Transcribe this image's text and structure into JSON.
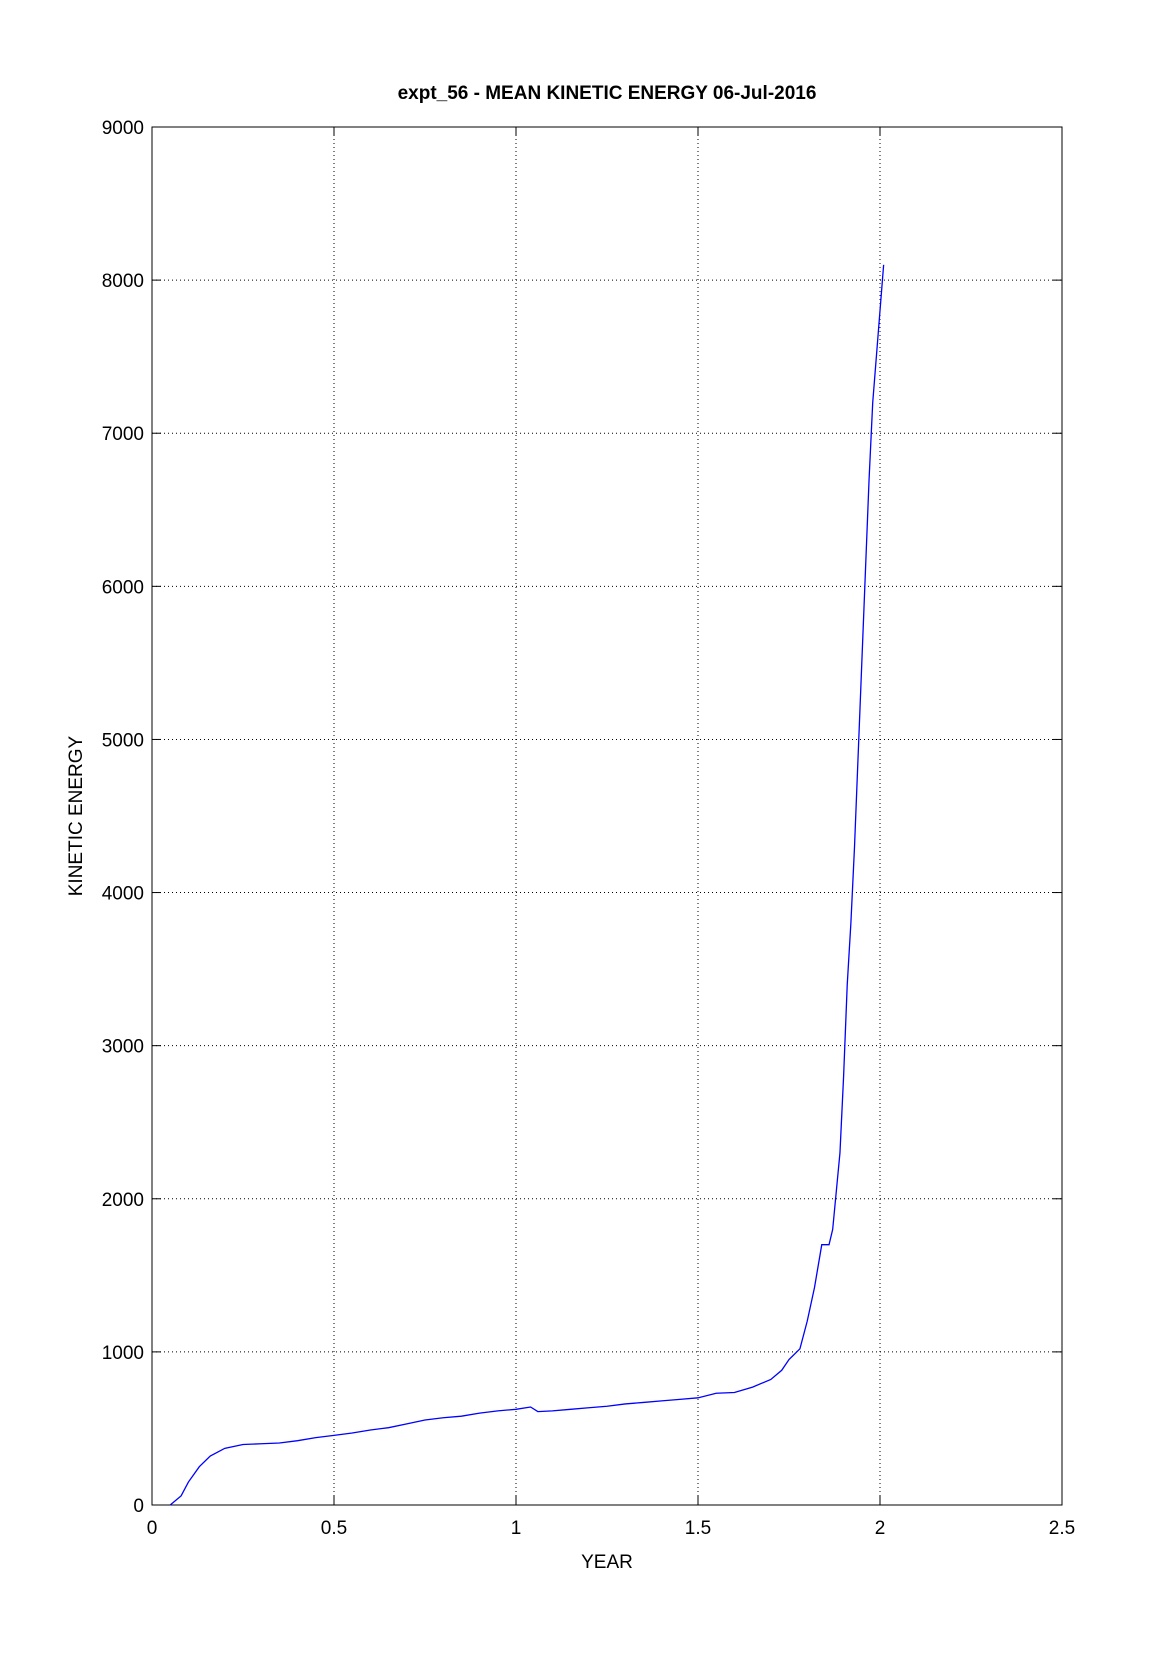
{
  "chart_data": {
    "type": "line",
    "title": "expt_56 - MEAN KINETIC ENERGY 06-Jul-2016",
    "x_label": "YEAR",
    "y_label": "KINETIC ENERGY",
    "xlim": [
      0,
      2.5
    ],
    "xticks": [
      0,
      0.5,
      1,
      1.5,
      2,
      2.5
    ],
    "ylim": [
      0,
      9000
    ],
    "yticks": [
      0,
      1000,
      2000,
      3000,
      4000,
      5000,
      6000,
      7000,
      8000,
      9000
    ],
    "grid": true,
    "series": [
      {
        "color": "#0000ff",
        "x": [
          0.05,
          0.08,
          0.1,
          0.13,
          0.16,
          0.2,
          0.25,
          0.3,
          0.35,
          0.4,
          0.45,
          0.5,
          0.55,
          0.6,
          0.65,
          0.7,
          0.75,
          0.8,
          0.85,
          0.9,
          0.95,
          1.0,
          1.04,
          1.06,
          1.1,
          1.15,
          1.2,
          1.25,
          1.3,
          1.35,
          1.4,
          1.45,
          1.5,
          1.55,
          1.6,
          1.65,
          1.7,
          1.73,
          1.75,
          1.78,
          1.8,
          1.82,
          1.84,
          1.86,
          1.87,
          1.89,
          1.9,
          1.91,
          1.92,
          1.93,
          1.94,
          1.95,
          1.96,
          1.97,
          1.98,
          1.99,
          2.0,
          2.01
        ],
        "values": [
          0,
          60,
          150,
          250,
          320,
          370,
          395,
          400,
          405,
          420,
          440,
          455,
          470,
          490,
          505,
          530,
          555,
          570,
          580,
          600,
          615,
          625,
          640,
          610,
          615,
          625,
          635,
          645,
          660,
          670,
          680,
          690,
          700,
          730,
          735,
          770,
          820,
          880,
          950,
          1020,
          1200,
          1420,
          1700,
          1700,
          1800,
          2300,
          2800,
          3400,
          3800,
          4300,
          4900,
          5500,
          6100,
          6700,
          7200,
          7500,
          7800,
          8100
        ]
      }
    ]
  }
}
